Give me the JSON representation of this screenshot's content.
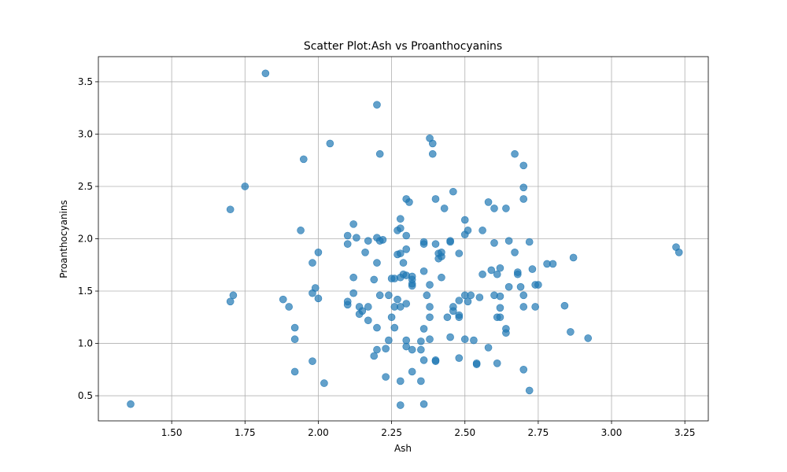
{
  "chart_data": {
    "type": "scatter",
    "title": "Scatter Plot:Ash vs Proanthocyanins",
    "xlabel": "Ash",
    "ylabel": "Proanthocyanins",
    "xlim": [
      1.25,
      3.33
    ],
    "ylim": [
      0.26,
      3.74
    ],
    "xticks": [
      "1.50",
      "1.75",
      "2.00",
      "2.25",
      "2.50",
      "2.75",
      "3.00",
      "3.25"
    ],
    "yticks": [
      "0.5",
      "1.0",
      "1.5",
      "2.0",
      "2.5",
      "3.0",
      "3.5"
    ],
    "grid": true,
    "marker_color": "#1f77b4",
    "marker_alpha": 0.7,
    "points": [
      [
        1.36,
        0.42
      ],
      [
        1.82,
        3.58
      ],
      [
        1.7,
        2.28
      ],
      [
        1.75,
        2.5
      ],
      [
        1.7,
        1.4
      ],
      [
        1.71,
        1.46
      ],
      [
        1.95,
        2.76
      ],
      [
        2.04,
        2.91
      ],
      [
        1.94,
        2.08
      ],
      [
        1.98,
        1.77
      ],
      [
        2.0,
        1.87
      ],
      [
        1.88,
        1.42
      ],
      [
        1.9,
        1.35
      ],
      [
        1.98,
        1.48
      ],
      [
        1.99,
        1.53
      ],
      [
        2.0,
        1.43
      ],
      [
        1.92,
        1.15
      ],
      [
        1.92,
        1.04
      ],
      [
        1.98,
        0.83
      ],
      [
        1.92,
        0.73
      ],
      [
        2.02,
        0.62
      ],
      [
        2.1,
        2.03
      ],
      [
        2.1,
        1.95
      ],
      [
        2.12,
        2.14
      ],
      [
        2.13,
        2.01
      ],
      [
        2.1,
        1.4
      ],
      [
        2.1,
        1.37
      ],
      [
        2.12,
        1.63
      ],
      [
        2.12,
        1.48
      ],
      [
        2.14,
        1.35
      ],
      [
        2.14,
        1.28
      ],
      [
        2.15,
        1.31
      ],
      [
        2.16,
        1.87
      ],
      [
        2.17,
        1.98
      ],
      [
        2.17,
        1.35
      ],
      [
        2.17,
        1.22
      ],
      [
        2.19,
        1.61
      ],
      [
        2.19,
        0.88
      ],
      [
        2.2,
        3.28
      ],
      [
        2.21,
        2.81
      ],
      [
        2.2,
        2.01
      ],
      [
        2.21,
        1.98
      ],
      [
        2.22,
        1.99
      ],
      [
        2.2,
        1.77
      ],
      [
        2.21,
        1.46
      ],
      [
        2.2,
        1.15
      ],
      [
        2.2,
        0.94
      ],
      [
        2.23,
        0.95
      ],
      [
        2.23,
        0.68
      ],
      [
        2.24,
        1.46
      ],
      [
        2.24,
        1.03
      ],
      [
        2.25,
        1.25
      ],
      [
        2.25,
        1.62
      ],
      [
        2.26,
        1.62
      ],
      [
        2.26,
        1.15
      ],
      [
        2.26,
        1.35
      ],
      [
        2.27,
        2.08
      ],
      [
        2.27,
        1.85
      ],
      [
        2.28,
        2.19
      ],
      [
        2.28,
        2.1
      ],
      [
        2.28,
        1.86
      ],
      [
        2.27,
        1.42
      ],
      [
        2.28,
        1.35
      ],
      [
        2.28,
        1.63
      ],
      [
        2.29,
        1.66
      ],
      [
        2.29,
        1.77
      ],
      [
        2.3,
        2.38
      ],
      [
        2.31,
        2.35
      ],
      [
        2.3,
        2.03
      ],
      [
        2.3,
        1.9
      ],
      [
        2.3,
        1.65
      ],
      [
        2.3,
        1.38
      ],
      [
        2.3,
        1.03
      ],
      [
        2.3,
        0.97
      ],
      [
        2.28,
        0.64
      ],
      [
        2.28,
        0.41
      ],
      [
        2.32,
        1.64
      ],
      [
        2.32,
        1.61
      ],
      [
        2.32,
        1.57
      ],
      [
        2.32,
        1.55
      ],
      [
        2.32,
        0.94
      ],
      [
        2.32,
        0.73
      ],
      [
        2.35,
        1.02
      ],
      [
        2.35,
        0.94
      ],
      [
        2.35,
        0.64
      ],
      [
        2.36,
        1.97
      ],
      [
        2.36,
        1.95
      ],
      [
        2.36,
        1.69
      ],
      [
        2.36,
        1.14
      ],
      [
        2.36,
        0.84
      ],
      [
        2.36,
        0.42
      ],
      [
        2.37,
        1.46
      ],
      [
        2.38,
        1.56
      ],
      [
        2.38,
        1.35
      ],
      [
        2.38,
        1.25
      ],
      [
        2.38,
        1.04
      ],
      [
        2.38,
        2.96
      ],
      [
        2.39,
        2.91
      ],
      [
        2.39,
        2.81
      ],
      [
        2.4,
        2.38
      ],
      [
        2.4,
        1.95
      ],
      [
        2.4,
        0.83
      ],
      [
        2.4,
        0.84
      ],
      [
        2.41,
        1.86
      ],
      [
        2.41,
        1.81
      ],
      [
        2.42,
        1.87
      ],
      [
        2.42,
        1.83
      ],
      [
        2.42,
        1.63
      ],
      [
        2.43,
        2.29
      ],
      [
        2.44,
        1.25
      ],
      [
        2.45,
        1.98
      ],
      [
        2.45,
        1.97
      ],
      [
        2.45,
        1.06
      ],
      [
        2.46,
        2.45
      ],
      [
        2.46,
        1.35
      ],
      [
        2.46,
        1.31
      ],
      [
        2.48,
        1.86
      ],
      [
        2.48,
        1.41
      ],
      [
        2.48,
        1.27
      ],
      [
        2.48,
        1.25
      ],
      [
        2.48,
        0.86
      ],
      [
        2.5,
        2.18
      ],
      [
        2.5,
        2.04
      ],
      [
        2.5,
        1.46
      ],
      [
        2.5,
        1.04
      ],
      [
        2.51,
        2.08
      ],
      [
        2.51,
        1.4
      ],
      [
        2.52,
        1.46
      ],
      [
        2.53,
        1.03
      ],
      [
        2.54,
        0.81
      ],
      [
        2.54,
        0.8
      ],
      [
        2.55,
        1.44
      ],
      [
        2.56,
        2.08
      ],
      [
        2.56,
        1.66
      ],
      [
        2.58,
        2.35
      ],
      [
        2.58,
        0.96
      ],
      [
        2.59,
        1.7
      ],
      [
        2.6,
        2.29
      ],
      [
        2.6,
        1.96
      ],
      [
        2.6,
        1.46
      ],
      [
        2.61,
        1.66
      ],
      [
        2.61,
        1.25
      ],
      [
        2.61,
        0.81
      ],
      [
        2.62,
        1.72
      ],
      [
        2.62,
        1.45
      ],
      [
        2.62,
        1.34
      ],
      [
        2.62,
        1.25
      ],
      [
        2.64,
        2.29
      ],
      [
        2.64,
        1.14
      ],
      [
        2.64,
        1.1
      ],
      [
        2.65,
        1.98
      ],
      [
        2.65,
        1.54
      ],
      [
        2.67,
        2.81
      ],
      [
        2.67,
        1.87
      ],
      [
        2.68,
        1.68
      ],
      [
        2.68,
        1.66
      ],
      [
        2.69,
        1.54
      ],
      [
        2.7,
        2.7
      ],
      [
        2.7,
        2.49
      ],
      [
        2.7,
        2.38
      ],
      [
        2.7,
        1.46
      ],
      [
        2.7,
        1.35
      ],
      [
        2.7,
        0.75
      ],
      [
        2.72,
        1.97
      ],
      [
        2.73,
        1.71
      ],
      [
        2.72,
        0.55
      ],
      [
        2.74,
        1.56
      ],
      [
        2.75,
        1.56
      ],
      [
        2.74,
        1.35
      ],
      [
        2.78,
        1.76
      ],
      [
        2.8,
        1.76
      ],
      [
        2.84,
        1.36
      ],
      [
        2.86,
        1.11
      ],
      [
        2.87,
        1.82
      ],
      [
        2.92,
        1.05
      ],
      [
        3.22,
        1.92
      ],
      [
        3.23,
        1.87
      ]
    ]
  }
}
